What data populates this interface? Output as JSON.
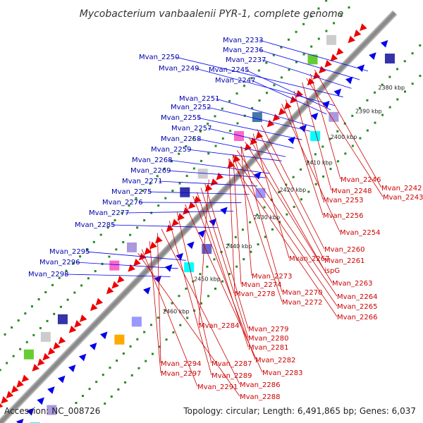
{
  "title": "Mycobacterium vanbaalenii PYR-1, complete genome",
  "footer": {
    "accession": "Accession: NC_008726",
    "summary": "Topology: circular; Length: 6,491,865 bp; Genes: 6,037"
  },
  "colors": {
    "backbone": "#8a8a8a",
    "forward_strand": "#0000ee",
    "reverse_strand": "#ee0000",
    "forward_label": "#0000aa",
    "reverse_label": "#cc0000",
    "gc_ticks": "#228B22"
  },
  "kbp_ticks": [
    "2380 kbp",
    "2390 kbp",
    "2400 kbp",
    "2410 kbp",
    "2420 kbp",
    "2430 kbp",
    "2440 kbp",
    "2450 kbp",
    "2460 kbp"
  ],
  "forward_genes": [
    "Mvan_2233",
    "Mvan_2236",
    "Mvan_2237",
    "Mvan_2250",
    "Mvan_2249",
    "Mvan_2245",
    "Mvan_2247",
    "Mvan_2251",
    "Mvan_2252",
    "Mvan_2255",
    "Mvan_2257",
    "Mvan_2258",
    "Mvan_2259",
    "Mvan_2268",
    "Mvan_2269",
    "Mvan_2271",
    "Mvan_2275",
    "Mvan_2276",
    "Mvan_2277",
    "Mvan_2285",
    "Mvan_2295",
    "Mvan_2296",
    "Mvan_2298"
  ],
  "reverse_genes": [
    "Mvan_2246",
    "Mvan_2242",
    "Mvan_2248",
    "Mvan_2243",
    "Mvan_2253",
    "Mvan_2256",
    "Mvan_2254",
    "Mvan_2260",
    "Mvan_2267",
    "Mvan_2261",
    "ispG",
    "Mvan_2273",
    "Mvan_2263",
    "Mvan_2274",
    "Mvan_2270",
    "Mvan_2264",
    "Mvan_2278",
    "Mvan_2272",
    "Mvan_2265",
    "Mvan_2266",
    "Mvan_2284",
    "Mvan_2279",
    "Mvan_2280",
    "Mvan_2281",
    "Mvan_2282",
    "Mvan_2294",
    "Mvan_2287",
    "Mvan_2283",
    "Mvan_2297",
    "Mvan_2289",
    "Mvan_2286",
    "Mvan_2291",
    "Mvan_2288"
  ]
}
